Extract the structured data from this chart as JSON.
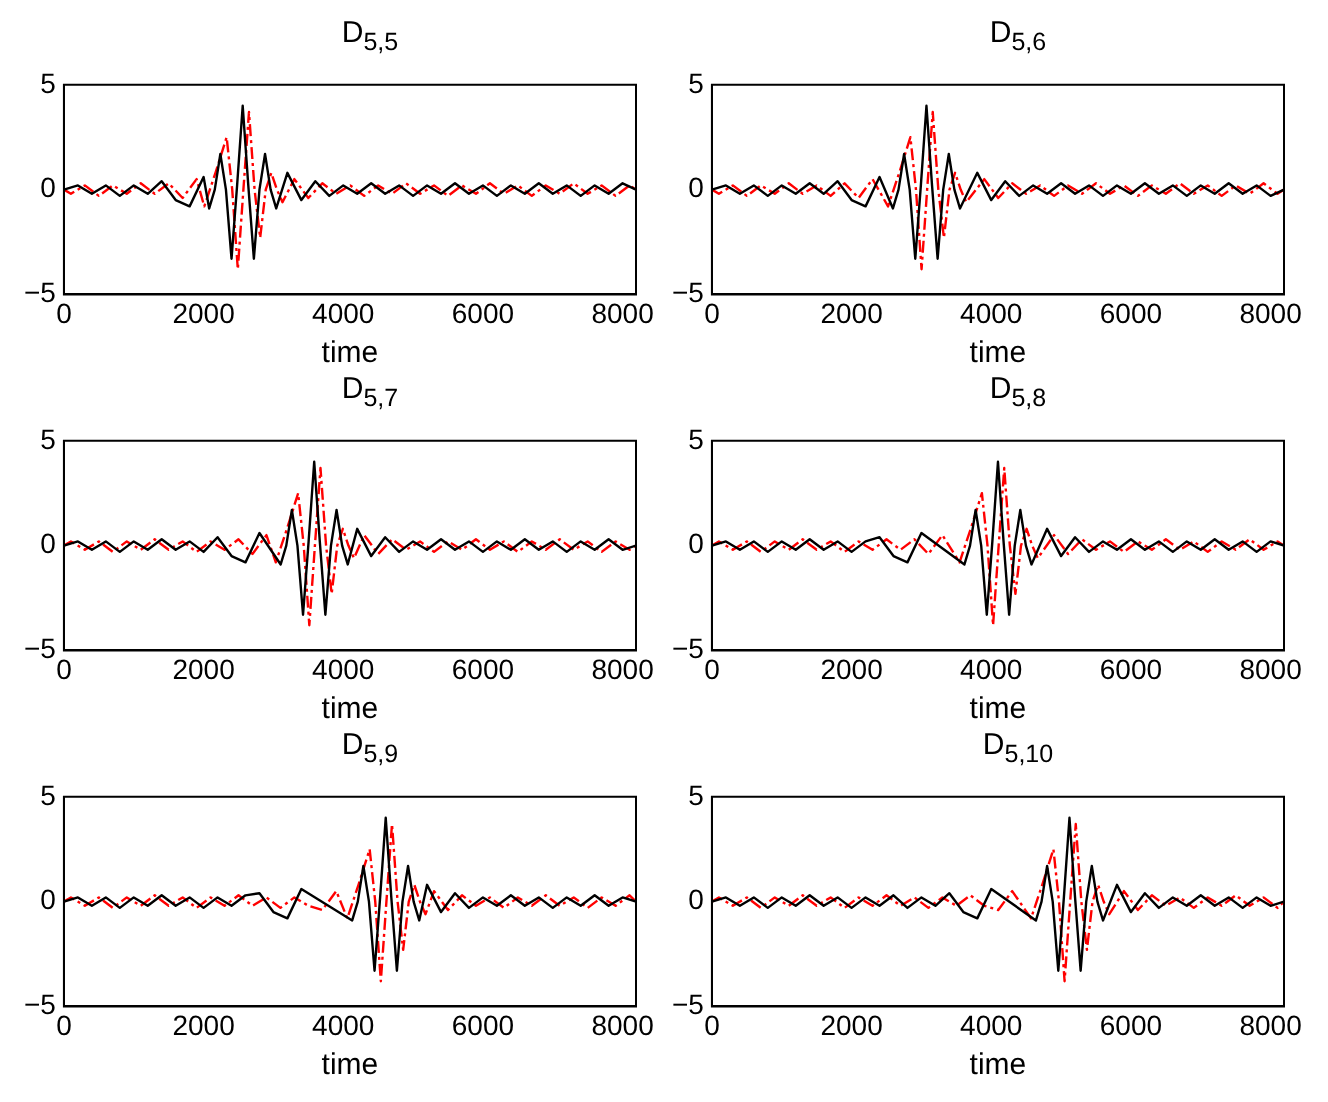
{
  "chart_data": [
    {
      "type": "line",
      "title": "D$_{5,5}$",
      "xlabel": "time",
      "xlim": [
        0,
        8192
      ],
      "xticks": [
        0,
        2000,
        4000,
        6000,
        8000
      ],
      "ylim": [
        -5,
        5
      ],
      "yticks": [
        -5,
        0,
        5
      ],
      "grid": false,
      "series": [
        {
          "color": "#000000",
          "line_style": "solid",
          "x": [
            0,
            200,
            400,
            600,
            800,
            1000,
            1200,
            1400,
            1600,
            1800,
            2000,
            2080,
            2160,
            2240,
            2320,
            2400,
            2480,
            2560,
            2640,
            2720,
            2800,
            2880,
            2960,
            3040,
            3200,
            3400,
            3600,
            3800,
            4000,
            4200,
            4400,
            4600,
            4800,
            5000,
            5200,
            5400,
            5600,
            5800,
            6000,
            6200,
            6400,
            6600,
            6800,
            7000,
            7200,
            7400,
            7600,
            7800,
            8000,
            8192
          ],
          "values": [
            0,
            0.2,
            -0.2,
            0.2,
            -0.3,
            0.2,
            -0.2,
            0.4,
            -0.5,
            -0.8,
            0.6,
            -0.9,
            0,
            1.7,
            0,
            -3.3,
            0.2,
            4,
            0.2,
            -3.3,
            0,
            1.7,
            0,
            -0.9,
            0.8,
            -0.5,
            0.4,
            -0.3,
            0.2,
            -0.2,
            0.3,
            -0.2,
            0.2,
            -0.3,
            0.2,
            -0.2,
            0.3,
            -0.2,
            0.2,
            -0.3,
            0.2,
            -0.2,
            0.3,
            -0.2,
            0.2,
            -0.3,
            0.2,
            -0.2,
            0.3,
            0
          ]
        },
        {
          "color": "#ff0000",
          "line_style": "dashed",
          "x": [
            0,
            100,
            300,
            500,
            700,
            900,
            1100,
            1300,
            1500,
            1700,
            1900,
            2010,
            2170,
            2330,
            2410,
            2490,
            2570,
            2650,
            2730,
            2810,
            2890,
            2970,
            3050,
            3130,
            3300,
            3500,
            3700,
            3900,
            4100,
            4300,
            4500,
            4700,
            4900,
            5100,
            5300,
            5500,
            5700,
            5900,
            6100,
            6300,
            6500,
            6700,
            6900,
            7100,
            7300,
            7500,
            7700,
            7900,
            8100,
            8192
          ],
          "values": [
            0,
            -0.2,
            0.2,
            -0.3,
            0.2,
            -0.2,
            0.3,
            -0.2,
            0.3,
            -0.4,
            0.5,
            -0.8,
            0.8,
            2.5,
            0,
            -3.8,
            0,
            3.7,
            0,
            -2.3,
            0,
            0.8,
            0,
            -0.6,
            0.5,
            -0.4,
            0.3,
            -0.2,
            0.2,
            -0.3,
            0.2,
            -0.2,
            0.3,
            -0.2,
            0.2,
            -0.3,
            0.2,
            -0.2,
            0.3,
            -0.2,
            0.2,
            -0.3,
            0.2,
            -0.2,
            0.3,
            -0.2,
            0.2,
            -0.3,
            0.2,
            0
          ]
        }
      ]
    },
    {
      "type": "line",
      "title": "D$_{5,6}$",
      "xlabel": "time",
      "xlim": [
        0,
        8192
      ],
      "xticks": [
        0,
        2000,
        4000,
        6000,
        8000
      ],
      "ylim": [
        -5,
        5
      ],
      "yticks": [
        -5,
        0,
        5
      ],
      "grid": false,
      "series": [
        {
          "color": "#000000",
          "line_style": "solid",
          "x": [
            0,
            200,
            400,
            600,
            800,
            1000,
            1200,
            1400,
            1600,
            1800,
            2000,
            2200,
            2400,
            2592,
            2672,
            2752,
            2832,
            2912,
            2992,
            3072,
            3152,
            3232,
            3312,
            3392,
            3472,
            3552,
            3800,
            4000,
            4200,
            4400,
            4600,
            4800,
            5000,
            5200,
            5400,
            5600,
            5800,
            6000,
            6200,
            6400,
            6600,
            6800,
            7000,
            7200,
            7400,
            7600,
            7800,
            8000,
            8192
          ],
          "values": [
            0,
            0.2,
            -0.2,
            0.2,
            -0.3,
            0.2,
            -0.2,
            0.3,
            -0.2,
            0.4,
            -0.5,
            -0.8,
            0.6,
            -0.9,
            0,
            1.7,
            0,
            -3.3,
            0.2,
            4,
            0.2,
            -3.3,
            0,
            1.7,
            0,
            -0.9,
            0.8,
            -0.5,
            0.4,
            -0.3,
            0.2,
            -0.2,
            0.3,
            -0.2,
            0.2,
            -0.3,
            0.2,
            -0.2,
            0.3,
            -0.2,
            0.2,
            -0.3,
            0.2,
            -0.2,
            0.3,
            -0.2,
            0.2,
            -0.3,
            0
          ]
        },
        {
          "color": "#ff0000",
          "line_style": "dashed",
          "x": [
            0,
            100,
            300,
            500,
            700,
            900,
            1100,
            1300,
            1500,
            1700,
            1900,
            2100,
            2300,
            2522,
            2682,
            2842,
            2922,
            3002,
            3082,
            3162,
            3242,
            3322,
            3402,
            3482,
            3562,
            3642,
            3900,
            4100,
            4300,
            4500,
            4700,
            4900,
            5100,
            5300,
            5500,
            5700,
            5900,
            6100,
            6300,
            6500,
            6700,
            6900,
            7100,
            7300,
            7500,
            7700,
            7900,
            8100,
            8192
          ],
          "values": [
            0,
            -0.2,
            0.2,
            -0.3,
            0.2,
            -0.2,
            0.3,
            -0.2,
            0.2,
            -0.3,
            0.3,
            -0.4,
            0.5,
            -0.8,
            0.8,
            2.5,
            0,
            -3.8,
            0,
            3.7,
            0,
            -2.3,
            0,
            0.8,
            0,
            -0.6,
            0.5,
            -0.4,
            0.3,
            -0.2,
            0.2,
            -0.3,
            0.2,
            -0.2,
            0.3,
            -0.2,
            0.2,
            -0.3,
            0.2,
            -0.2,
            0.3,
            -0.2,
            0.2,
            -0.3,
            0.2,
            -0.2,
            0.3,
            -0.2,
            0
          ]
        }
      ]
    },
    {
      "type": "line",
      "title": "D$_{5,7}$",
      "xlabel": "time",
      "xlim": [
        0,
        8192
      ],
      "xticks": [
        0,
        2000,
        4000,
        6000,
        8000
      ],
      "ylim": [
        -5,
        5
      ],
      "yticks": [
        -5,
        0,
        5
      ],
      "grid": false,
      "series": [
        {
          "color": "#000000",
          "line_style": "solid",
          "x": [
            0,
            200,
            400,
            600,
            800,
            1000,
            1200,
            1400,
            1600,
            1800,
            2000,
            2200,
            2400,
            2600,
            2800,
            3104,
            3184,
            3264,
            3344,
            3424,
            3504,
            3584,
            3664,
            3744,
            3824,
            3904,
            3984,
            4064,
            4200,
            4400,
            4600,
            4800,
            5000,
            5200,
            5400,
            5600,
            5800,
            6000,
            6200,
            6400,
            6600,
            6800,
            7000,
            7200,
            7400,
            7600,
            7800,
            8000,
            8192
          ],
          "values": [
            0,
            0.2,
            -0.2,
            0.2,
            -0.3,
            0.2,
            -0.2,
            0.3,
            -0.2,
            0.2,
            -0.3,
            0.4,
            -0.5,
            -0.8,
            0.6,
            -0.9,
            0,
            1.7,
            0,
            -3.3,
            0.2,
            4,
            0.2,
            -3.3,
            0,
            1.7,
            0,
            -0.9,
            0.8,
            -0.5,
            0.4,
            -0.3,
            0.2,
            -0.2,
            0.3,
            -0.2,
            0.2,
            -0.3,
            0.2,
            -0.2,
            0.3,
            -0.2,
            0.2,
            -0.3,
            0.2,
            -0.2,
            0.3,
            -0.2,
            0
          ]
        },
        {
          "color": "#ff0000",
          "line_style": "dashed",
          "x": [
            0,
            100,
            300,
            500,
            700,
            900,
            1100,
            1300,
            1500,
            1700,
            1900,
            2100,
            2300,
            2500,
            2700,
            2900,
            3034,
            3194,
            3354,
            3434,
            3514,
            3594,
            3674,
            3754,
            3834,
            3914,
            3994,
            4074,
            4154,
            4300,
            4500,
            4700,
            4900,
            5100,
            5300,
            5500,
            5700,
            5900,
            6100,
            6300,
            6500,
            6700,
            6900,
            7100,
            7300,
            7500,
            7700,
            7900,
            8100,
            8192
          ],
          "values": [
            0,
            0.2,
            -0.2,
            0.2,
            -0.3,
            0.2,
            -0.2,
            0.3,
            -0.2,
            0.2,
            -0.3,
            0.2,
            -0.2,
            0.3,
            -0.4,
            0.5,
            -0.8,
            0.8,
            2.5,
            0,
            -3.8,
            0,
            3.7,
            0,
            -2.3,
            0,
            0.8,
            0,
            -0.6,
            0.5,
            -0.4,
            0.3,
            -0.2,
            0.2,
            -0.3,
            0.2,
            -0.2,
            0.3,
            -0.2,
            0.2,
            -0.3,
            0.2,
            -0.2,
            0.3,
            -0.2,
            0.2,
            -0.3,
            0.2,
            -0.2,
            0
          ]
        }
      ]
    },
    {
      "type": "line",
      "title": "D$_{5,8}$",
      "xlabel": "time",
      "xlim": [
        0,
        8192
      ],
      "xticks": [
        0,
        2000,
        4000,
        6000,
        8000
      ],
      "ylim": [
        -5,
        5
      ],
      "yticks": [
        -5,
        0,
        5
      ],
      "grid": false,
      "series": [
        {
          "color": "#000000",
          "line_style": "solid",
          "x": [
            0,
            200,
            400,
            600,
            800,
            1000,
            1200,
            1400,
            1600,
            1800,
            2000,
            2200,
            2400,
            2600,
            2800,
            3000,
            3616,
            3696,
            3776,
            3856,
            3936,
            4016,
            4096,
            4176,
            4256,
            4336,
            4416,
            4496,
            4576,
            4800,
            5000,
            5200,
            5400,
            5600,
            5800,
            6000,
            6200,
            6400,
            6600,
            6800,
            7000,
            7200,
            7400,
            7600,
            7800,
            8000,
            8192
          ],
          "values": [
            0,
            0.2,
            -0.2,
            0.2,
            -0.3,
            0.2,
            -0.2,
            0.3,
            -0.2,
            0.2,
            -0.3,
            0.2,
            0.4,
            -0.5,
            -0.8,
            0.6,
            -0.9,
            0,
            1.7,
            0,
            -3.3,
            0.2,
            4,
            0.2,
            -3.3,
            0,
            1.7,
            0,
            -0.9,
            0.8,
            -0.5,
            0.4,
            -0.3,
            0.2,
            -0.2,
            0.3,
            -0.2,
            0.2,
            -0.3,
            0.2,
            -0.2,
            0.3,
            -0.2,
            0.2,
            -0.3,
            0.2,
            0
          ]
        },
        {
          "color": "#ff0000",
          "line_style": "dashed",
          "x": [
            0,
            100,
            300,
            500,
            700,
            900,
            1100,
            1300,
            1500,
            1700,
            1900,
            2100,
            2300,
            2500,
            2700,
            2900,
            3100,
            3300,
            3546,
            3706,
            3866,
            3946,
            4026,
            4106,
            4186,
            4266,
            4346,
            4426,
            4506,
            4586,
            4666,
            4900,
            5100,
            5300,
            5500,
            5700,
            5900,
            6100,
            6300,
            6500,
            6700,
            6900,
            7100,
            7300,
            7500,
            7700,
            7900,
            8100,
            8192
          ],
          "values": [
            0,
            0.2,
            -0.2,
            0.2,
            -0.3,
            0.2,
            -0.2,
            0.3,
            -0.2,
            0.2,
            -0.3,
            0.2,
            -0.2,
            0.3,
            -0.2,
            0.3,
            -0.4,
            0.5,
            -0.8,
            0.8,
            2.5,
            0,
            -3.8,
            0,
            3.7,
            0,
            -2.3,
            0,
            0.8,
            0,
            -0.6,
            0.5,
            -0.4,
            0.3,
            -0.2,
            0.2,
            -0.3,
            0.2,
            -0.2,
            0.3,
            -0.2,
            0.2,
            -0.3,
            0.2,
            -0.2,
            0.3,
            -0.2,
            0.2,
            0
          ]
        }
      ]
    },
    {
      "type": "line",
      "title": "D$_{5,9}$",
      "xlabel": "time",
      "xlim": [
        0,
        8192
      ],
      "xticks": [
        0,
        2000,
        4000,
        6000,
        8000
      ],
      "ylim": [
        -5,
        5
      ],
      "yticks": [
        -5,
        0,
        5
      ],
      "grid": false,
      "series": [
        {
          "color": "#000000",
          "line_style": "solid",
          "x": [
            0,
            200,
            400,
            600,
            800,
            1000,
            1200,
            1400,
            1600,
            1800,
            2000,
            2200,
            2400,
            2600,
            2800,
            3000,
            3200,
            3400,
            4128,
            4208,
            4288,
            4368,
            4448,
            4528,
            4608,
            4688,
            4768,
            4848,
            4928,
            5008,
            5088,
            5200,
            5400,
            5600,
            5800,
            6000,
            6200,
            6400,
            6600,
            6800,
            7000,
            7200,
            7400,
            7600,
            7800,
            8000,
            8192
          ],
          "values": [
            0,
            0.2,
            -0.2,
            0.2,
            -0.3,
            0.2,
            -0.2,
            0.3,
            -0.2,
            0.2,
            -0.3,
            0.2,
            -0.2,
            0.3,
            0.4,
            -0.5,
            -0.8,
            0.6,
            -0.9,
            0,
            1.7,
            0,
            -3.3,
            0.2,
            4,
            0.2,
            -3.3,
            0,
            1.7,
            0,
            -0.9,
            0.8,
            -0.5,
            0.4,
            -0.3,
            0.2,
            -0.2,
            0.3,
            -0.2,
            0.2,
            -0.3,
            0.2,
            -0.2,
            0.3,
            -0.2,
            0.2,
            0
          ]
        },
        {
          "color": "#ff0000",
          "line_style": "dashed",
          "x": [
            0,
            100,
            300,
            500,
            700,
            900,
            1100,
            1300,
            1500,
            1700,
            1900,
            2100,
            2300,
            2500,
            2700,
            2900,
            3100,
            3300,
            3500,
            3700,
            3900,
            4058,
            4218,
            4378,
            4458,
            4538,
            4618,
            4698,
            4778,
            4858,
            4938,
            5018,
            5098,
            5178,
            5300,
            5500,
            5700,
            5900,
            6100,
            6300,
            6500,
            6700,
            6900,
            7100,
            7300,
            7500,
            7700,
            7900,
            8100,
            8192
          ],
          "values": [
            0,
            0.2,
            -0.2,
            0.2,
            -0.3,
            0.2,
            -0.2,
            0.3,
            -0.2,
            0.2,
            -0.3,
            0.2,
            -0.2,
            0.3,
            -0.2,
            0.2,
            -0.3,
            0.2,
            -0.2,
            -0.4,
            0.5,
            -0.8,
            0.8,
            2.5,
            0,
            -3.8,
            0,
            3.7,
            0,
            -2.3,
            0,
            0.8,
            0,
            -0.6,
            0.5,
            -0.4,
            0.3,
            -0.2,
            0.2,
            -0.3,
            0.2,
            -0.2,
            0.3,
            -0.2,
            0.2,
            -0.3,
            0.2,
            -0.2,
            0.3,
            0
          ]
        }
      ]
    },
    {
      "type": "line",
      "title": "D$_{5,10}$",
      "xlabel": "time",
      "xlim": [
        0,
        8192
      ],
      "xticks": [
        0,
        2000,
        4000,
        6000,
        8000
      ],
      "ylim": [
        -5,
        5
      ],
      "yticks": [
        -5,
        0,
        5
      ],
      "grid": false,
      "series": [
        {
          "color": "#000000",
          "line_style": "solid",
          "x": [
            0,
            200,
            400,
            600,
            800,
            1000,
            1200,
            1400,
            1600,
            1800,
            2000,
            2200,
            2400,
            2600,
            2800,
            3000,
            3200,
            3400,
            3600,
            3800,
            4000,
            4640,
            4720,
            4800,
            4880,
            4960,
            5040,
            5120,
            5200,
            5280,
            5360,
            5440,
            5520,
            5600,
            5800,
            6000,
            6200,
            6400,
            6600,
            6800,
            7000,
            7200,
            7400,
            7600,
            7800,
            8000,
            8192
          ],
          "values": [
            0,
            0.2,
            -0.2,
            0.2,
            -0.3,
            0.2,
            -0.2,
            0.3,
            -0.2,
            0.2,
            -0.3,
            0.2,
            -0.2,
            0.3,
            -0.3,
            0.2,
            -0.2,
            0.4,
            -0.5,
            -0.8,
            0.6,
            -0.9,
            0,
            1.7,
            0,
            -3.3,
            0.2,
            4,
            0.2,
            -3.3,
            0,
            1.7,
            0,
            -0.9,
            0.8,
            -0.5,
            0.4,
            -0.3,
            0.2,
            -0.2,
            0.3,
            -0.2,
            0.2,
            -0.3,
            0.2,
            -0.2,
            0
          ]
        },
        {
          "color": "#ff0000",
          "line_style": "dashed",
          "x": [
            0,
            100,
            300,
            500,
            700,
            900,
            1100,
            1300,
            1500,
            1700,
            1900,
            2100,
            2300,
            2500,
            2700,
            2900,
            3100,
            3300,
            3500,
            3700,
            3900,
            4100,
            4300,
            4570,
            4730,
            4890,
            4970,
            5050,
            5130,
            5210,
            5290,
            5370,
            5450,
            5530,
            5610,
            5690,
            5900,
            6100,
            6300,
            6500,
            6700,
            6900,
            7100,
            7300,
            7500,
            7700,
            7900,
            8100,
            8192
          ],
          "values": [
            0,
            0.2,
            -0.2,
            0.2,
            -0.3,
            0.2,
            -0.2,
            0.3,
            -0.2,
            0.2,
            -0.3,
            0.2,
            -0.2,
            0.3,
            -0.2,
            0.2,
            -0.3,
            0.2,
            -0.2,
            0.3,
            -0.2,
            -0.4,
            0.5,
            -0.8,
            0.8,
            2.5,
            0,
            -3.8,
            0,
            3.7,
            0,
            -2.3,
            0,
            0.8,
            0,
            -0.6,
            0.5,
            -0.4,
            0.3,
            -0.2,
            0.2,
            -0.3,
            0.2,
            -0.2,
            0.3,
            -0.2,
            0.2,
            -0.3,
            0
          ]
        }
      ]
    }
  ]
}
